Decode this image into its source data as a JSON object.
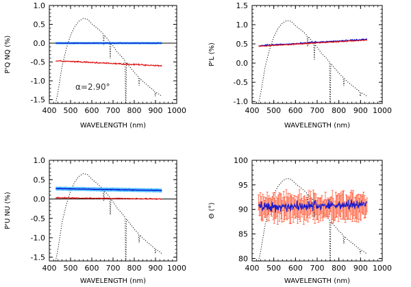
{
  "figure_title": "",
  "chart_data": [
    {
      "id": "nq",
      "type": "line",
      "xlabel": "WAVELENGTH (nm)",
      "ylabel": "P'Q NQ (%)",
      "xlim": [
        400,
        1000
      ],
      "ylim": [
        -1.6,
        1.0
      ],
      "xticks": [
        400,
        500,
        600,
        700,
        800,
        900,
        1000
      ],
      "yticks": [
        -1.5,
        -1.0,
        -0.5,
        0.0,
        0.5,
        1.0
      ],
      "ytick_labels": [
        "-1.5",
        "-1.0",
        "-0.5",
        "0.0",
        "0.5",
        "1.0"
      ],
      "zero_line": 0.0,
      "annotation": "α=2.90°",
      "spectrum_scale": [
        -1.6,
        0.75
      ],
      "series": [
        {
          "name": "null-Q (cyan band)",
          "color": "#33b5ff",
          "style": "band",
          "x": [
            430,
            930
          ],
          "y": [
            0.0,
            0.0
          ],
          "band": 0.03
        },
        {
          "name": "null-Q (blue)",
          "color": "#0000cc",
          "style": "noisy",
          "x": [
            430,
            930
          ],
          "y": [
            0.0,
            0.0
          ],
          "noise": 0.01
        },
        {
          "name": "Q (red)",
          "color": "#dd1111",
          "style": "noisy",
          "x": [
            430,
            930
          ],
          "y": [
            -0.47,
            -0.6
          ],
          "noise": 0.025
        }
      ]
    },
    {
      "id": "pl",
      "type": "line",
      "xlabel": "WAVELENGTH (nm)",
      "ylabel": "P'L (%)",
      "xlim": [
        400,
        1000
      ],
      "ylim": [
        -1.05,
        1.5
      ],
      "xticks": [
        400,
        500,
        600,
        700,
        800,
        900,
        1000
      ],
      "yticks": [
        -1.0,
        -0.5,
        0.0,
        0.5,
        1.0,
        1.5
      ],
      "ytick_labels": [
        "-1.0",
        "-0.5",
        "0.0",
        "0.5",
        "1.0",
        "1.5"
      ],
      "zero_line": null,
      "annotation": "",
      "spectrum_scale": [
        -1.05,
        1.2
      ],
      "series": [
        {
          "name": "P_L (blue)",
          "color": "#0000cc",
          "style": "noisy",
          "x": [
            430,
            930
          ],
          "y": [
            0.45,
            0.62
          ],
          "noise": 0.025
        },
        {
          "name": "P_L (red)",
          "color": "#dd1111",
          "style": "noisy",
          "x": [
            430,
            930
          ],
          "y": [
            0.44,
            0.6
          ],
          "noise": 0.02
        }
      ]
    },
    {
      "id": "nu",
      "type": "line",
      "xlabel": "WAVELENGTH (nm)",
      "ylabel": "P'U NU (%)",
      "xlim": [
        400,
        1000
      ],
      "ylim": [
        -1.6,
        1.0
      ],
      "xticks": [
        400,
        500,
        600,
        700,
        800,
        900,
        1000
      ],
      "yticks": [
        -1.5,
        -1.0,
        -0.5,
        0.0,
        0.5,
        1.0
      ],
      "ytick_labels": [
        "-1.5",
        "-1.0",
        "-0.5",
        "0.0",
        "0.5",
        "1.0"
      ],
      "zero_line": 0.0,
      "annotation": "",
      "spectrum_scale": [
        -1.6,
        0.75
      ],
      "series": [
        {
          "name": "U (cyan band)",
          "color": "#33b5ff",
          "style": "band",
          "x": [
            430,
            930
          ],
          "y": [
            0.27,
            0.22
          ],
          "band": 0.05
        },
        {
          "name": "U (blue)",
          "color": "#0000cc",
          "style": "noisy",
          "x": [
            430,
            930
          ],
          "y": [
            0.27,
            0.22
          ],
          "noise": 0.012
        },
        {
          "name": "null-U (red)",
          "color": "#dd1111",
          "style": "noisy",
          "x": [
            430,
            930
          ],
          "y": [
            0.03,
            0.0
          ],
          "noise": 0.02
        }
      ]
    },
    {
      "id": "theta",
      "type": "line",
      "xlabel": "WAVELENGTH (nm)",
      "ylabel": "Θ (°)",
      "xlim": [
        400,
        1000
      ],
      "ylim": [
        79.5,
        100
      ],
      "xticks": [
        400,
        500,
        600,
        700,
        800,
        900,
        1000
      ],
      "yticks": [
        80,
        85,
        90,
        95,
        100
      ],
      "ytick_labels": [
        "80",
        "85",
        "90",
        "95",
        "100"
      ],
      "zero_line": null,
      "annotation": "",
      "spectrum_scale": [
        79.5,
        97
      ],
      "series": [
        {
          "name": "Theta error bars (red)",
          "color": "#ff5533",
          "style": "errorbars",
          "x": [
            430,
            930
          ],
          "y": [
            90.5,
            90.5
          ],
          "noise": 1.6,
          "err": 2.2
        },
        {
          "name": "Theta (blue)",
          "color": "#1a1acc",
          "style": "noisy",
          "x": [
            430,
            930
          ],
          "y": [
            90.5,
            91.0
          ],
          "noise": 1.5
        }
      ]
    }
  ],
  "spectrum": {
    "name": "intensity spectrum (dotted)",
    "x": [
      430,
      440,
      460,
      480,
      500,
      520,
      540,
      560,
      580,
      600,
      620,
      640,
      660,
      680,
      700,
      720,
      740,
      760,
      780,
      800,
      820,
      840,
      860,
      880,
      900,
      920,
      930
    ],
    "y": [
      0.0,
      0.12,
      0.42,
      0.62,
      0.77,
      0.87,
      0.93,
      0.96,
      0.95,
      0.9,
      0.86,
      0.82,
      0.77,
      0.71,
      0.65,
      0.58,
      0.53,
      0.47,
      0.41,
      0.35,
      0.3,
      0.25,
      0.21,
      0.17,
      0.13,
      0.1,
      0.08
    ],
    "dips": [
      {
        "x": 656,
        "depth": 0.12
      },
      {
        "x": 687,
        "depth": 0.18
      },
      {
        "x": 760,
        "depth": 0.7
      },
      {
        "x": 823,
        "depth": 0.09
      },
      {
        "x": 899,
        "depth": 0.05
      }
    ]
  }
}
